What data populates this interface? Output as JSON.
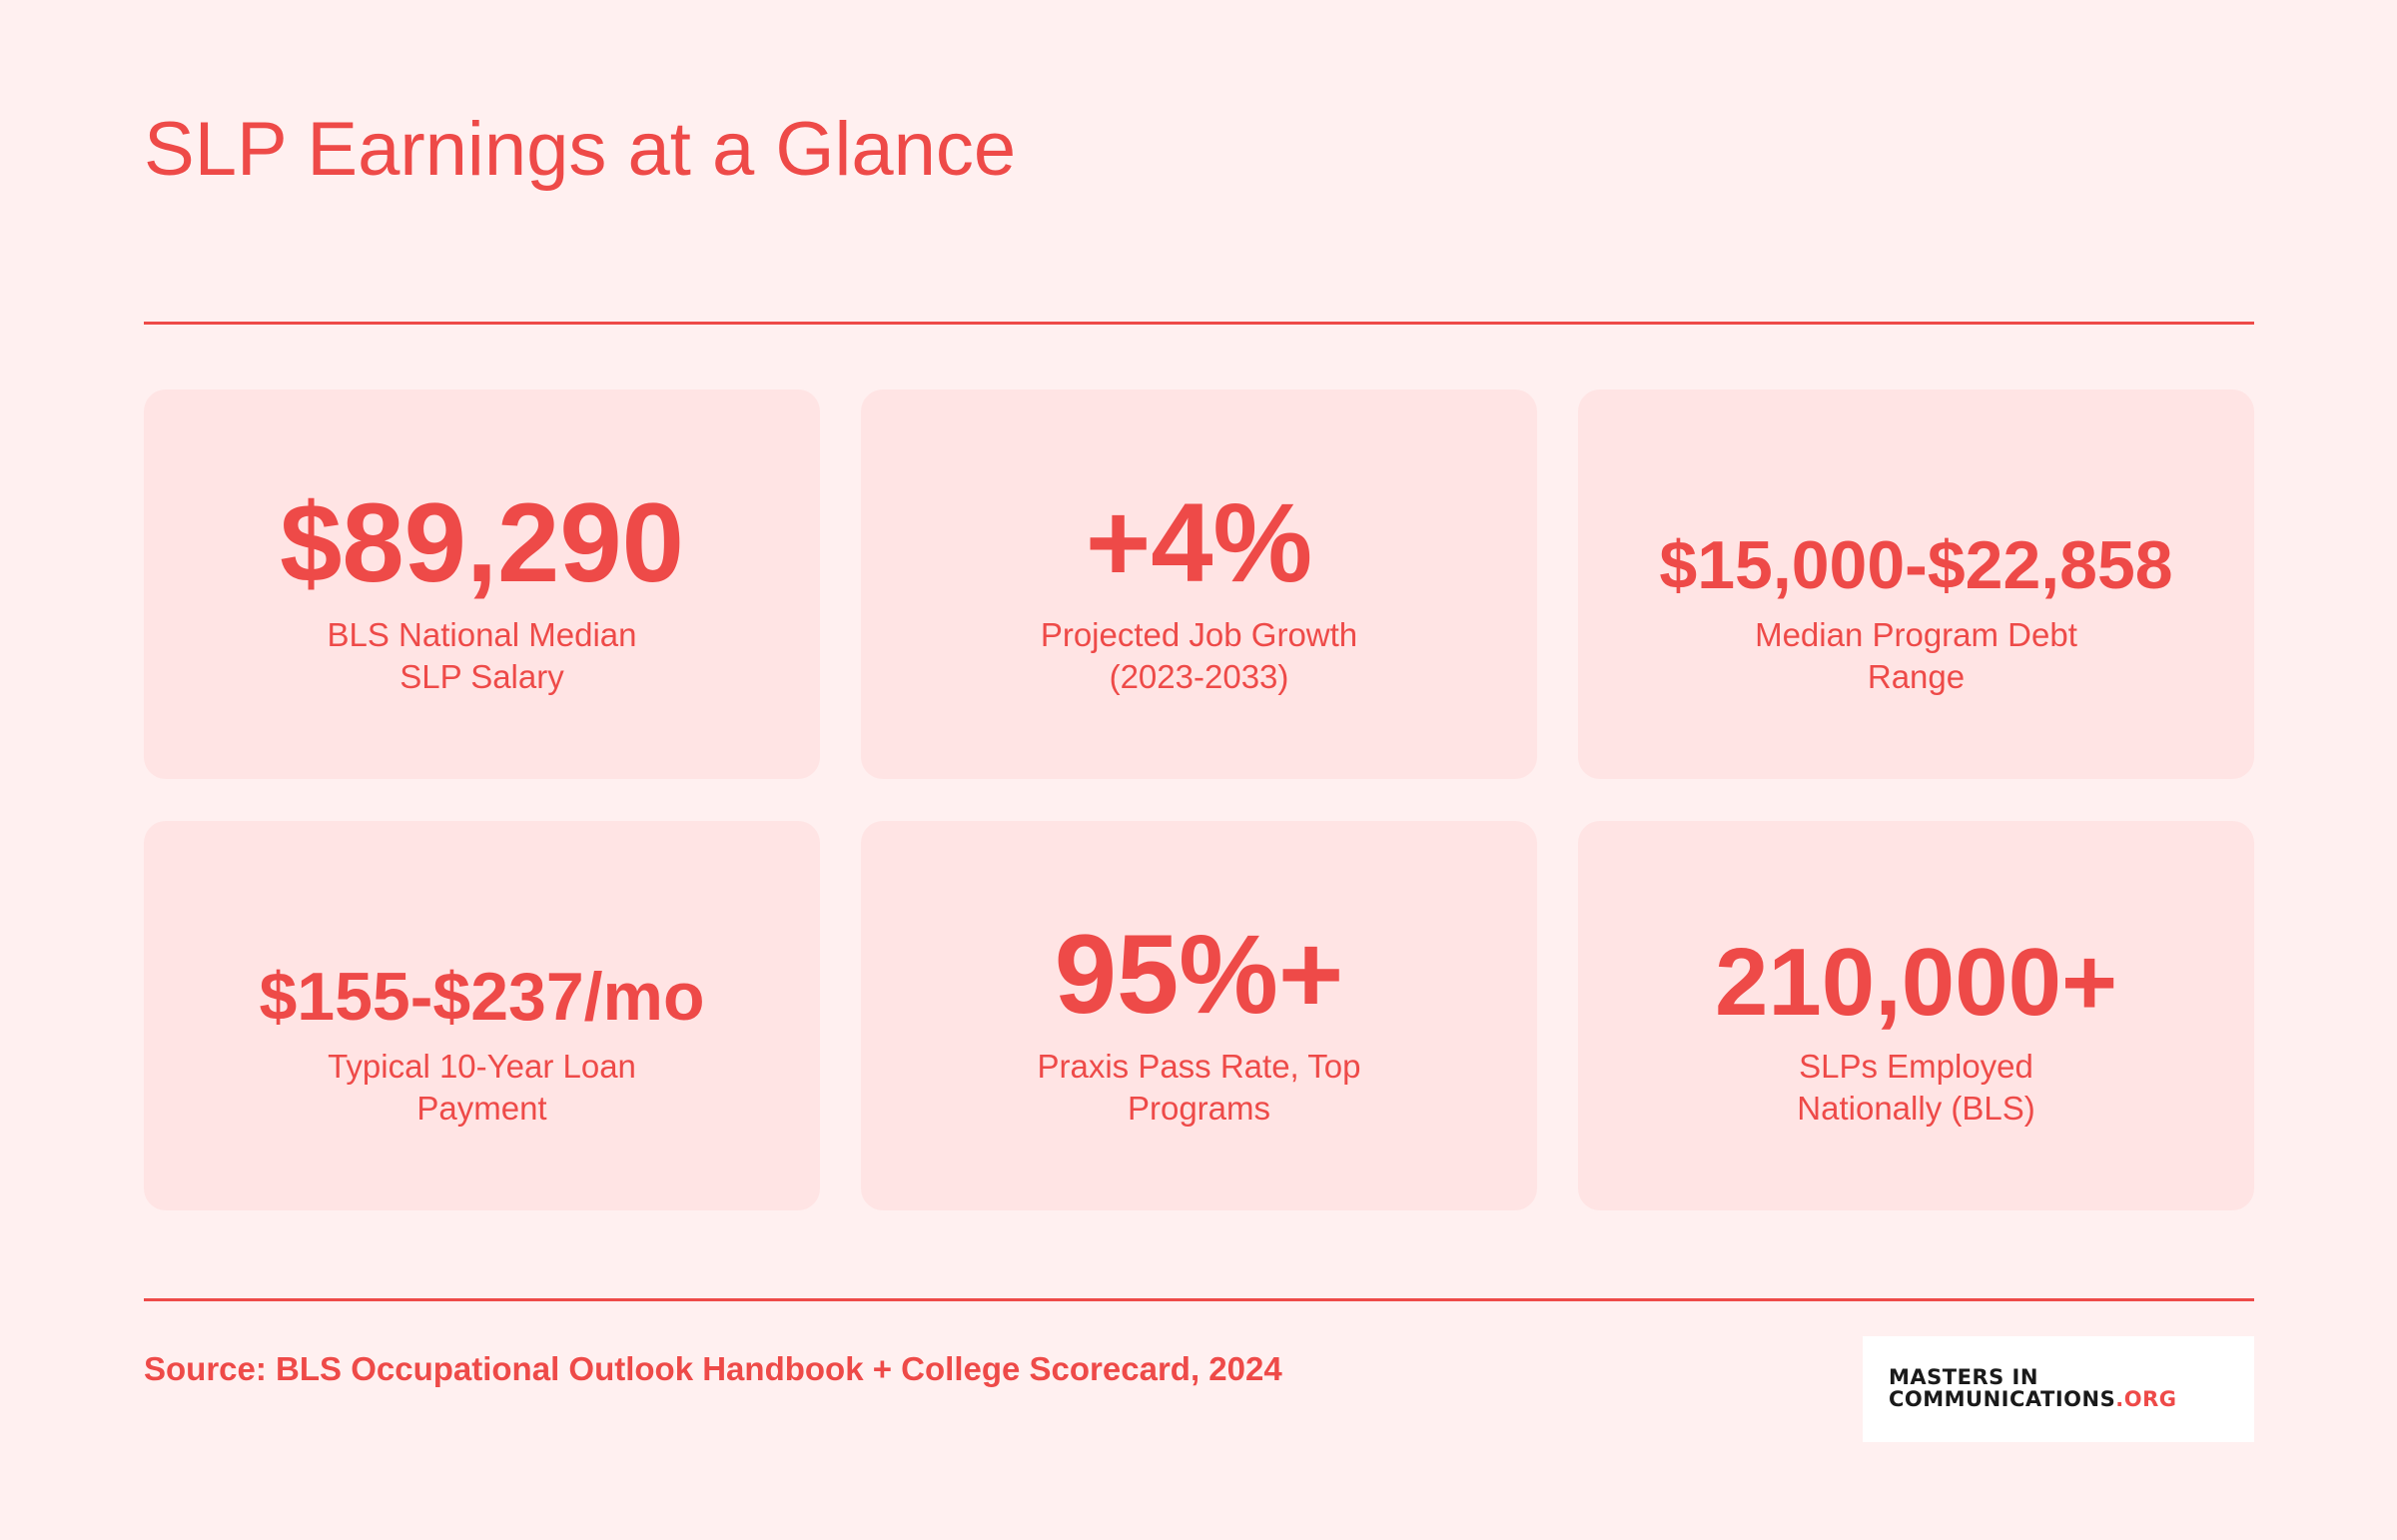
{
  "title": "SLP Earnings at a Glance",
  "colors": {
    "accent": "#ee4a48",
    "background": "#fff0f0",
    "card": "#ffe4e4"
  },
  "stats": [
    {
      "value": "$89,290",
      "label_line1": "BLS National Median",
      "label_line2": "SLP Salary"
    },
    {
      "value": "+4%",
      "label_line1": "Projected Job Growth",
      "label_line2": "(2023-2033)"
    },
    {
      "value": "$15,000-$22,858",
      "label_line1": "Median Program Debt",
      "label_line2": "Range"
    },
    {
      "value": "$155-$237/mo",
      "label_line1": "Typical 10-Year Loan",
      "label_line2": "Payment"
    },
    {
      "value": "95%+",
      "label_line1": "Praxis Pass Rate, Top",
      "label_line2": "Programs"
    },
    {
      "value": "210,000+",
      "label_line1": "SLPs Employed",
      "label_line2": "Nationally (BLS)"
    }
  ],
  "footer": {
    "source": "Source: BLS Occupational Outlook Handbook + College Scorecard, 2024"
  },
  "logo": {
    "line1": "MASTERS IN",
    "line2_main": "COMMUNICATIONS",
    "line2_suffix": ".ORG"
  }
}
